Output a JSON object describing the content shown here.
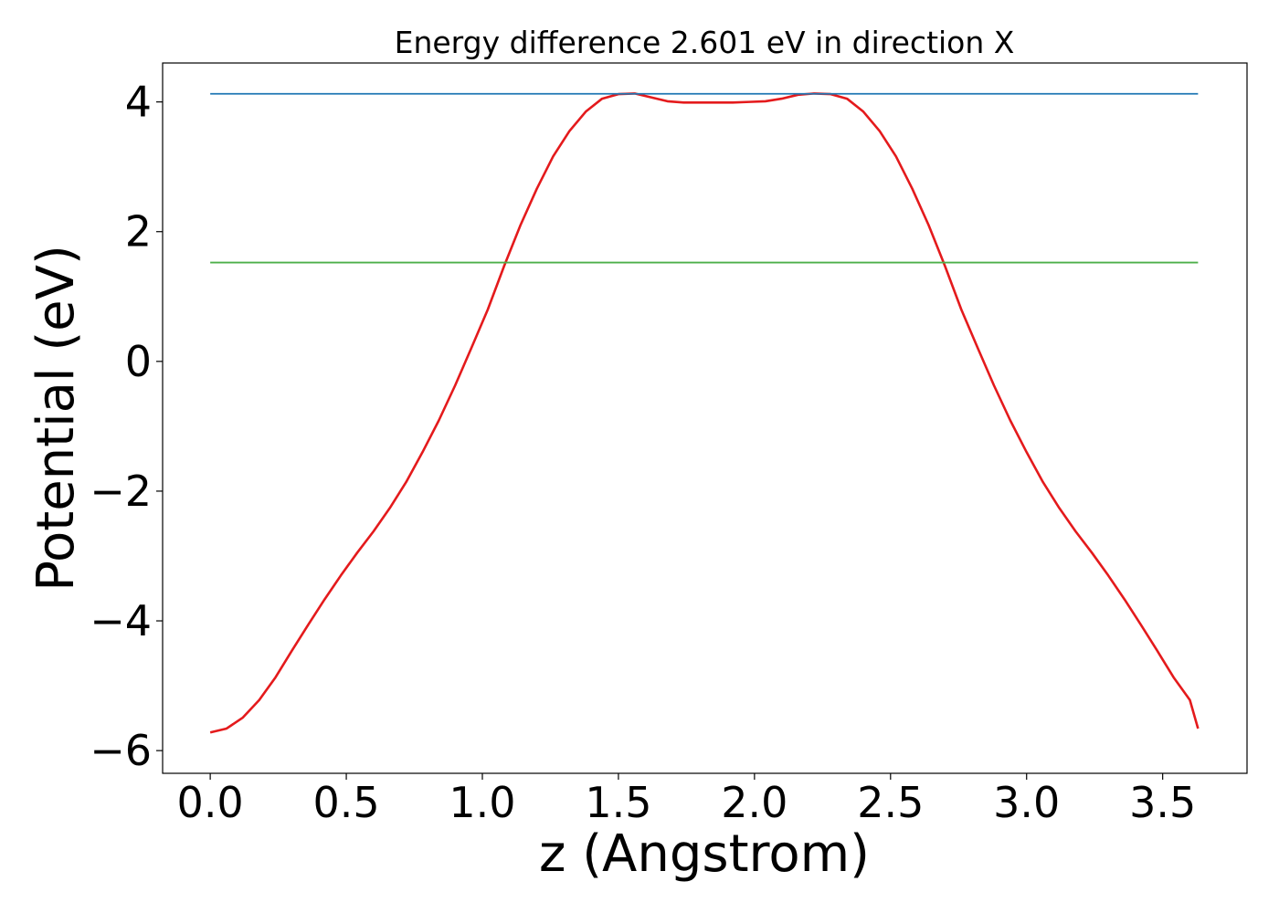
{
  "chart_data": {
    "type": "line",
    "title": "Energy difference 2.601 eV in direction X",
    "xlabel": "z (Angstrom)",
    "ylabel": "Potential (eV)",
    "xlim": [
      -0.175,
      3.81
    ],
    "ylim": [
      -6.35,
      4.6
    ],
    "grid": false,
    "x_ticks": [
      {
        "value": 0.0,
        "label": "0.0"
      },
      {
        "value": 0.5,
        "label": "0.5"
      },
      {
        "value": 1.0,
        "label": "1.0"
      },
      {
        "value": 1.5,
        "label": "1.5"
      },
      {
        "value": 2.0,
        "label": "2.0"
      },
      {
        "value": 2.5,
        "label": "2.5"
      },
      {
        "value": 3.0,
        "label": "3.0"
      },
      {
        "value": 3.5,
        "label": "3.5"
      }
    ],
    "y_ticks": [
      {
        "value": 4,
        "label": "4"
      },
      {
        "value": 2,
        "label": "2"
      },
      {
        "value": 0,
        "label": "0"
      },
      {
        "value": -2,
        "label": "−2"
      },
      {
        "value": -4,
        "label": "−4"
      },
      {
        "value": -6,
        "label": "−6"
      }
    ],
    "series": [
      {
        "color": "#e41a1c",
        "x": [
          0.0,
          0.06,
          0.12,
          0.18,
          0.24,
          0.3,
          0.36,
          0.42,
          0.48,
          0.54,
          0.6,
          0.66,
          0.72,
          0.78,
          0.84,
          0.9,
          0.96,
          1.02,
          1.08,
          1.14,
          1.2,
          1.26,
          1.32,
          1.38,
          1.44,
          1.5,
          1.56,
          1.62,
          1.68,
          1.74,
          1.8,
          1.86,
          1.92,
          1.98,
          2.04,
          2.1,
          2.16,
          2.22,
          2.28,
          2.34,
          2.4,
          2.46,
          2.52,
          2.58,
          2.64,
          2.7,
          2.76,
          2.82,
          2.88,
          2.94,
          3.0,
          3.06,
          3.12,
          3.18,
          3.24,
          3.3,
          3.36,
          3.42,
          3.48,
          3.54,
          3.6,
          3.63
        ],
        "values": [
          -5.72,
          -5.66,
          -5.49,
          -5.22,
          -4.87,
          -4.46,
          -4.06,
          -3.67,
          -3.3,
          -2.95,
          -2.62,
          -2.26,
          -1.86,
          -1.4,
          -0.91,
          -0.37,
          0.21,
          0.8,
          1.47,
          2.1,
          2.66,
          3.16,
          3.55,
          3.85,
          4.05,
          4.12,
          4.13,
          4.07,
          4.01,
          3.99,
          3.99,
          3.99,
          3.99,
          4.0,
          4.01,
          4.05,
          4.11,
          4.13,
          4.12,
          4.05,
          3.85,
          3.55,
          3.16,
          2.66,
          2.1,
          1.47,
          0.8,
          0.21,
          -0.37,
          -0.91,
          -1.4,
          -1.86,
          -2.26,
          -2.62,
          -2.95,
          -3.3,
          -3.67,
          -4.06,
          -4.46,
          -4.87,
          -5.22,
          -5.66
        ]
      },
      {
        "color": "#1f77b4",
        "x": [
          0.0,
          3.63
        ],
        "values": [
          4.125,
          4.125
        ]
      },
      {
        "color": "#4daf4a",
        "x": [
          0.0,
          3.63
        ],
        "values": [
          1.524,
          1.524
        ]
      }
    ]
  }
}
